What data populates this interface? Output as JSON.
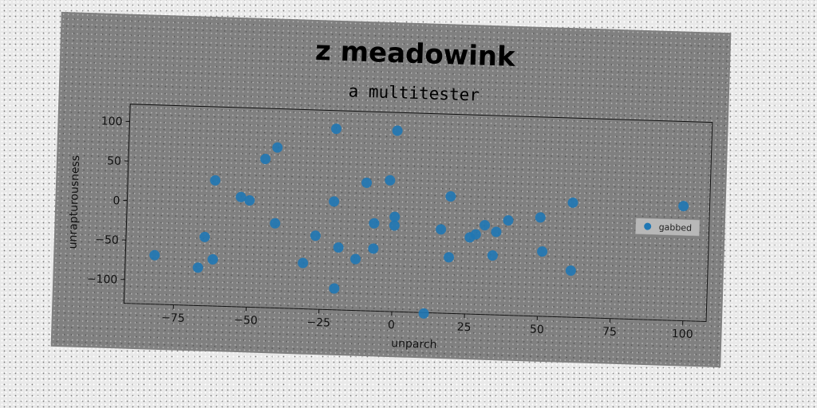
{
  "chart_data": {
    "type": "scatter",
    "title": "z meadowink",
    "subtitle": "a multitester",
    "xlabel": "unparch",
    "ylabel": "unrapturousness",
    "xlim": [
      -92,
      108
    ],
    "ylim": [
      -130,
      122
    ],
    "xticks": [
      -75,
      -50,
      -25,
      0,
      25,
      50,
      75,
      100
    ],
    "yticks": [
      -100,
      -50,
      0,
      50,
      100
    ],
    "xtick_labels": [
      "−75",
      "−50",
      "−25",
      "0",
      "25",
      "50",
      "75",
      "100"
    ],
    "ytick_labels": [
      "−100",
      "−50",
      "0",
      "50",
      "100"
    ],
    "grid": false,
    "legend_position": "right",
    "colors": {
      "series": "#1f77b4",
      "figure_bg": "#808080",
      "legend_bg": "#b8b8b8"
    },
    "series": [
      {
        "name": "gabbed",
        "points": [
          [
            -82,
            -68
          ],
          [
            -67,
            -82
          ],
          [
            -65,
            -43
          ],
          [
            -62,
            29
          ],
          [
            -62,
            -71
          ],
          [
            -53,
            9
          ],
          [
            -50,
            5
          ],
          [
            -45,
            58
          ],
          [
            -41,
            73
          ],
          [
            -41,
            -23
          ],
          [
            -31,
            -72
          ],
          [
            -27,
            -37
          ],
          [
            -21,
            99
          ],
          [
            -21,
            7
          ],
          [
            -20,
            -103
          ],
          [
            -19,
            -51
          ],
          [
            -13,
            -65
          ],
          [
            -10,
            32
          ],
          [
            -7,
            -19
          ],
          [
            -7,
            -51
          ],
          [
            -2,
            36
          ],
          [
            0,
            99
          ],
          [
            0,
            -10
          ],
          [
            0,
            -21
          ],
          [
            11,
            -131
          ],
          [
            16,
            -24
          ],
          [
            19,
            18
          ],
          [
            19,
            -59
          ],
          [
            26,
            -33
          ],
          [
            28,
            -29
          ],
          [
            31,
            -17
          ],
          [
            34,
            -55
          ],
          [
            35,
            -25
          ],
          [
            39,
            -10
          ],
          [
            50,
            -5
          ],
          [
            51,
            -48
          ],
          [
            61,
            15
          ],
          [
            61,
            -71
          ],
          [
            99,
            15
          ]
        ]
      }
    ]
  }
}
